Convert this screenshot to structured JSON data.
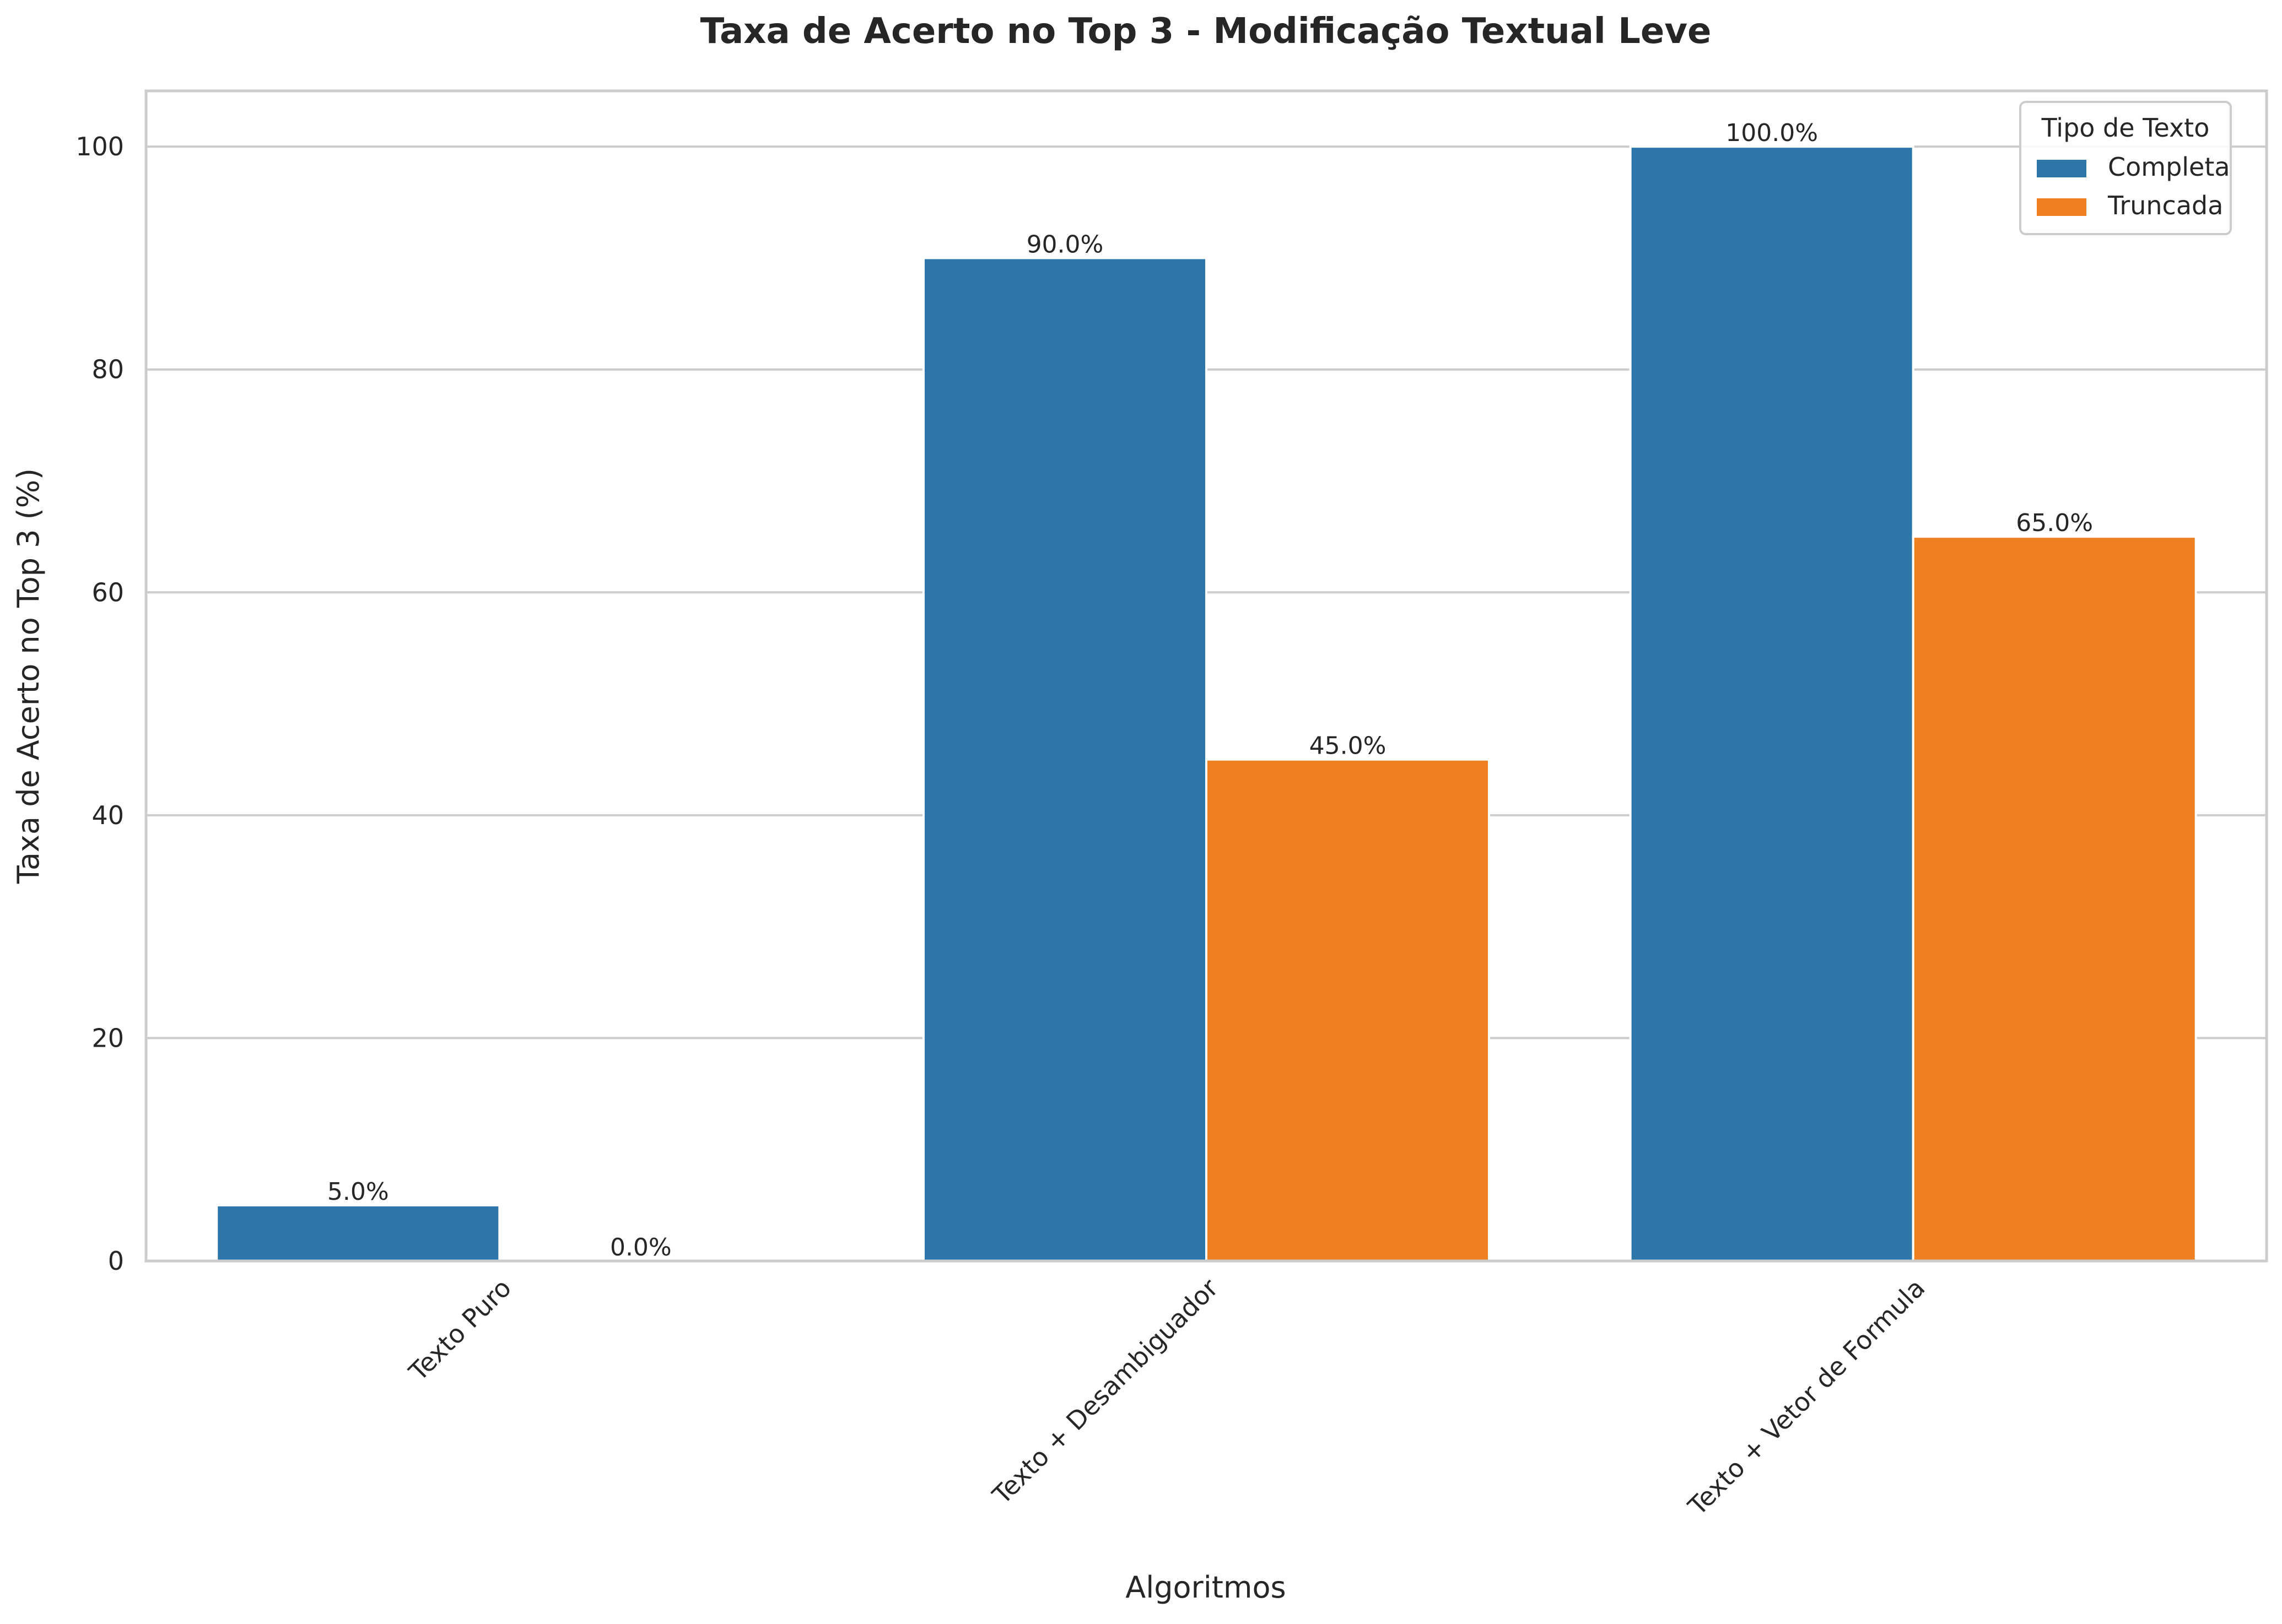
{
  "chart_data": {
    "type": "bar",
    "title": "Taxa de Acerto no Top 3 - Modificação Textual Leve",
    "xlabel": "Algoritmos",
    "ylabel": "Taxa de Acerto no Top 3 (%)",
    "categories": [
      "Texto Puro",
      "Texto + Desambiguador",
      "Texto + Vetor de Formula"
    ],
    "series": [
      {
        "name": "Completa",
        "values": [
          5.0,
          90.0,
          100.0
        ],
        "labels": [
          "5.0%",
          "90.0%",
          "100.0%"
        ],
        "color": "#2c76aa"
      },
      {
        "name": "Truncada",
        "values": [
          0.0,
          45.0,
          65.0
        ],
        "labels": [
          "0.0%",
          "45.0%",
          "65.0%"
        ],
        "color": "#ee8022"
      }
    ],
    "ylim": [
      0,
      105
    ],
    "yticks": [
      0,
      20,
      40,
      60,
      80,
      100
    ],
    "ytick_labels": [
      "0",
      "20",
      "40",
      "60",
      "80",
      "100"
    ],
    "grid": "horizontal",
    "legend": {
      "title": "Tipo de Texto",
      "placement": "top-right"
    }
  }
}
